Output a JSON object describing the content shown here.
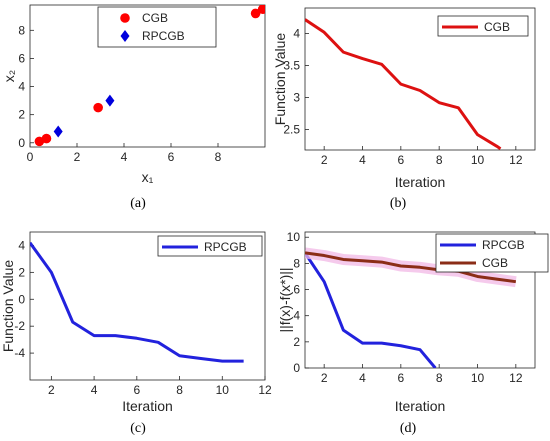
{
  "captions": [
    "(a)",
    "(b)",
    "(c)",
    "(d)"
  ],
  "chart_data": [
    {
      "type": "scatter",
      "caption": "(a)",
      "xlabel": "x₁",
      "ylabel": "x₂",
      "xlim": [
        0,
        10
      ],
      "ylim": [
        -0.3,
        9.8
      ],
      "xticks": [
        0,
        2,
        4,
        6,
        8
      ],
      "yticks": [
        0,
        2,
        4,
        6,
        8
      ],
      "legend_position": "top-center",
      "series": [
        {
          "name": "CGB",
          "color": "#ff0000",
          "marker": "circle",
          "x": [
            0.4,
            0.7,
            2.9,
            9.6,
            9.9
          ],
          "y": [
            0.1,
            0.3,
            2.5,
            9.2,
            9.5
          ]
        },
        {
          "name": "RPCGB",
          "color": "#0000dd",
          "marker": "diamond",
          "x": [
            1.2,
            3.4
          ],
          "y": [
            0.8,
            3.0
          ]
        }
      ]
    },
    {
      "type": "line",
      "caption": "(b)",
      "xlabel": "Iteration",
      "ylabel": "Function Value",
      "xlim": [
        1,
        13
      ],
      "ylim": [
        2.18,
        4.4
      ],
      "xticks": [
        2,
        4,
        6,
        8,
        10,
        12
      ],
      "yticks": [
        2.5,
        3,
        3.5,
        4
      ],
      "legend_position": "top-right",
      "series": [
        {
          "name": "CGB",
          "color": "#dd1111",
          "x": [
            1,
            2,
            3,
            4,
            5,
            6,
            7,
            8,
            9,
            10,
            11,
            11.2
          ],
          "y": [
            4.22,
            4.02,
            3.71,
            3.61,
            3.52,
            3.21,
            3.11,
            2.92,
            2.84,
            2.42,
            2.24,
            2.2
          ]
        }
      ]
    },
    {
      "type": "line",
      "caption": "(c)",
      "xlabel": "Iteration",
      "ylabel": "Function Value",
      "xlim": [
        1,
        12
      ],
      "ylim": [
        -6,
        5
      ],
      "xticks": [
        2,
        4,
        6,
        8,
        10,
        12
      ],
      "yticks": [
        -4,
        -2,
        0,
        2,
        4
      ],
      "legend_position": "top-right",
      "series": [
        {
          "name": "RPCGB",
          "color": "#2222dd",
          "x": [
            1,
            2,
            3,
            4,
            5,
            6,
            7,
            8,
            9,
            10,
            11
          ],
          "y": [
            4.2,
            2.0,
            -1.7,
            -2.7,
            -2.7,
            -2.9,
            -3.2,
            -4.2,
            -4.4,
            -4.6,
            -4.6
          ]
        }
      ]
    },
    {
      "type": "line",
      "caption": "(d)",
      "xlabel": "Iteration",
      "ylabel": "||f(x)-f(x*)||",
      "xlim": [
        1,
        13
      ],
      "ylim": [
        0,
        10.4
      ],
      "xticks": [
        2,
        4,
        6,
        8,
        10,
        12
      ],
      "yticks": [
        0,
        2,
        4,
        6,
        8,
        10
      ],
      "legend_position": "top-right",
      "series": [
        {
          "name": "RPCGB",
          "color": "#2222dd",
          "x": [
            1,
            2,
            3,
            4,
            5,
            6,
            7,
            7.8
          ],
          "y": [
            8.8,
            6.6,
            2.9,
            1.9,
            1.9,
            1.7,
            1.4,
            0
          ]
        },
        {
          "name": "CGB",
          "color": "#8b2d17",
          "band_color": "#f2b8e6",
          "x": [
            1,
            2,
            3,
            4,
            5,
            6,
            7,
            8,
            9,
            10,
            11,
            12
          ],
          "y": [
            8.8,
            8.6,
            8.3,
            8.2,
            8.1,
            7.8,
            7.7,
            7.5,
            7.4,
            7.0,
            6.8,
            6.6
          ]
        }
      ]
    }
  ]
}
